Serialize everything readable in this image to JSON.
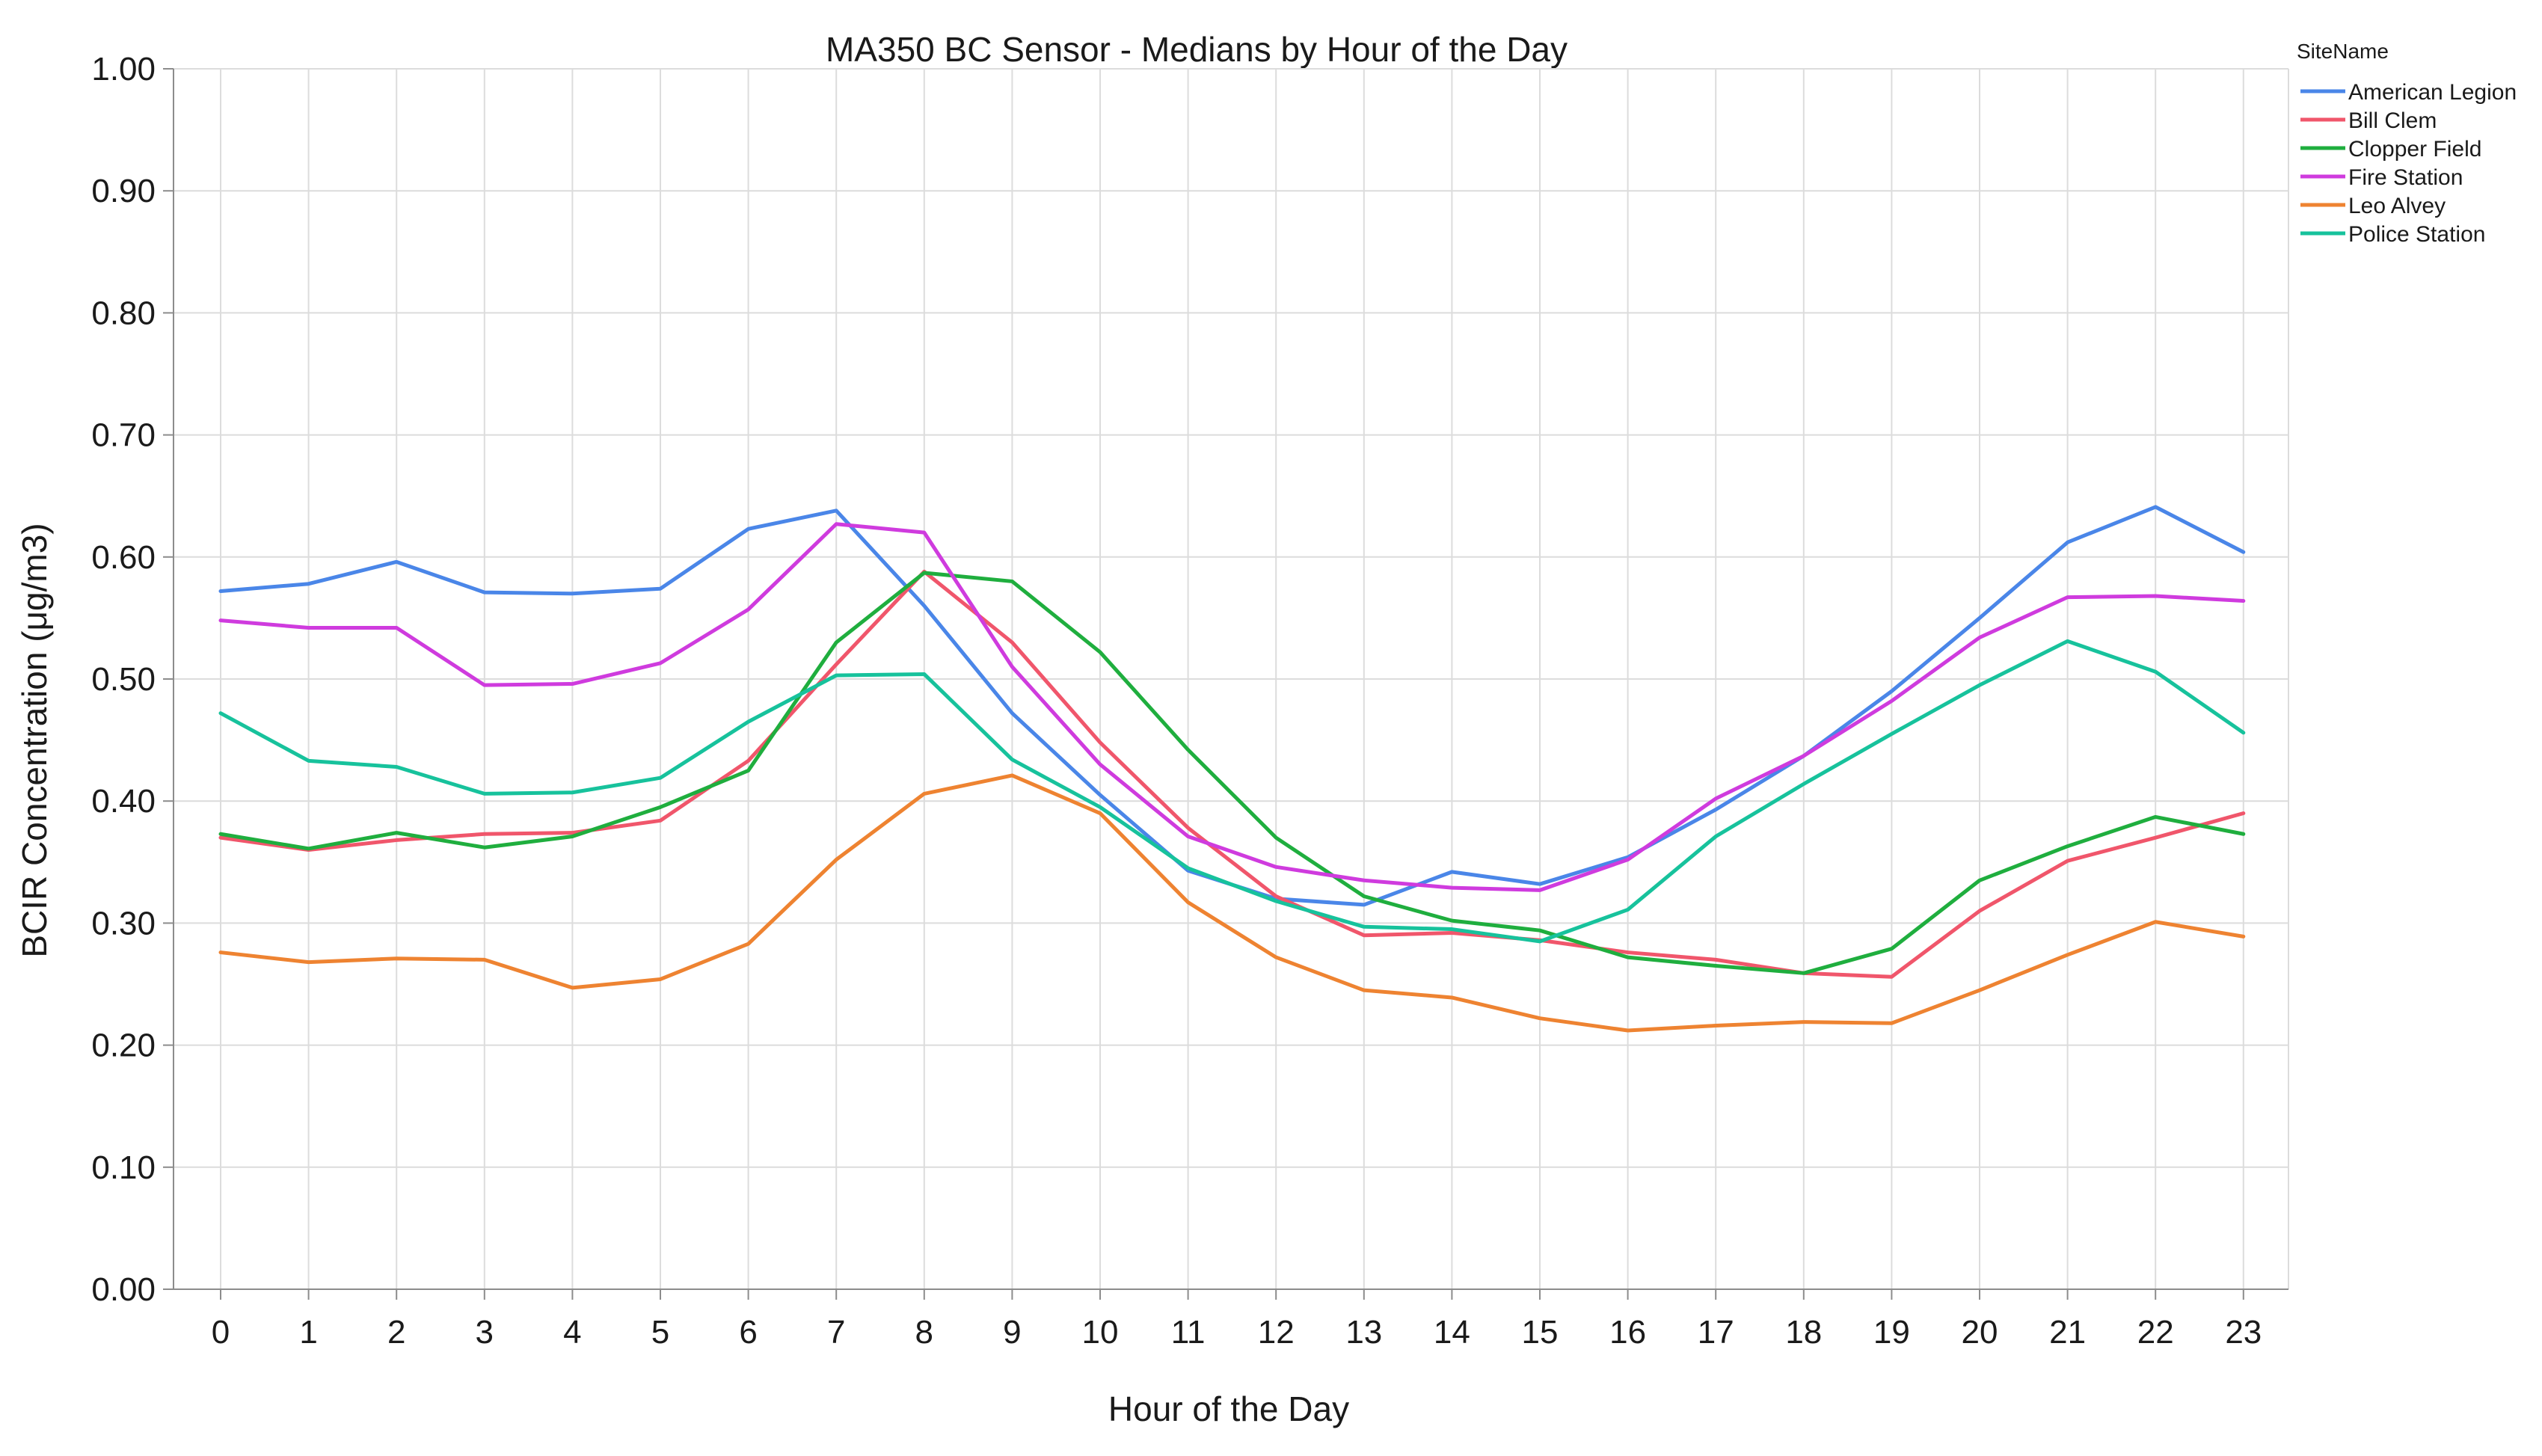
{
  "chart_data": {
    "type": "line",
    "title": "MA350 BC Sensor - Medians by Hour of the Day",
    "xlabel": "Hour of the Day",
    "ylabel": "BCIR Concentration (μg/m3)",
    "x": [
      0,
      1,
      2,
      3,
      4,
      5,
      6,
      7,
      8,
      9,
      10,
      11,
      12,
      13,
      14,
      15,
      16,
      17,
      18,
      19,
      20,
      21,
      22,
      23
    ],
    "x_tick_labels": [
      "0",
      "1",
      "2",
      "3",
      "4",
      "5",
      "6",
      "7",
      "8",
      "9",
      "10",
      "11",
      "12",
      "13",
      "14",
      "15",
      "16",
      "17",
      "18",
      "19",
      "20",
      "21",
      "22",
      "23"
    ],
    "ylim": [
      0,
      1
    ],
    "y_ticks": [
      0,
      0.1,
      0.2,
      0.3,
      0.4,
      0.5,
      0.6,
      0.7,
      0.8,
      0.9,
      1.0
    ],
    "y_tick_labels": [
      "0.00",
      "0.10",
      "0.20",
      "0.30",
      "0.40",
      "0.50",
      "0.60",
      "0.70",
      "0.80",
      "0.90",
      "1.00"
    ],
    "grid": true,
    "legend": {
      "title": "SiteName",
      "placement": "top-right, outside plot"
    },
    "series": [
      {
        "name": "American Legion",
        "color": "#4a86e8",
        "values": [
          0.572,
          0.578,
          0.596,
          0.571,
          0.57,
          0.574,
          0.623,
          0.638,
          0.56,
          0.472,
          0.405,
          0.343,
          0.32,
          0.315,
          0.342,
          0.332,
          0.354,
          0.393,
          0.437,
          0.49,
          0.55,
          0.612,
          0.641,
          0.604
        ]
      },
      {
        "name": "Bill Clem",
        "color": "#f0566b",
        "values": [
          0.37,
          0.36,
          0.368,
          0.373,
          0.374,
          0.384,
          0.433,
          0.512,
          0.588,
          0.53,
          0.448,
          0.378,
          0.322,
          0.29,
          0.292,
          0.286,
          0.276,
          0.27,
          0.259,
          0.256,
          0.31,
          0.351,
          0.37,
          0.39
        ]
      },
      {
        "name": "Clopper Field",
        "color": "#1fae3e",
        "values": [
          0.373,
          0.361,
          0.374,
          0.362,
          0.371,
          0.395,
          0.425,
          0.53,
          0.587,
          0.58,
          0.522,
          0.442,
          0.37,
          0.322,
          0.302,
          0.294,
          0.272,
          0.265,
          0.259,
          0.279,
          0.335,
          0.363,
          0.387,
          0.373
        ]
      },
      {
        "name": "Fire Station",
        "color": "#cf3bde",
        "values": [
          0.548,
          0.542,
          0.542,
          0.495,
          0.496,
          0.513,
          0.557,
          0.627,
          0.62,
          0.51,
          0.43,
          0.371,
          0.346,
          0.335,
          0.329,
          0.327,
          0.352,
          0.402,
          0.437,
          0.482,
          0.534,
          0.567,
          0.568,
          0.564
        ]
      },
      {
        "name": "Leo Alvey",
        "color": "#ee8331",
        "values": [
          0.276,
          0.268,
          0.271,
          0.27,
          0.247,
          0.254,
          0.283,
          0.352,
          0.406,
          0.421,
          0.39,
          0.317,
          0.272,
          0.245,
          0.239,
          0.222,
          0.212,
          0.216,
          0.219,
          0.218,
          0.245,
          0.274,
          0.301,
          0.289
        ]
      },
      {
        "name": "Police Station",
        "color": "#17c29c",
        "values": [
          0.472,
          0.433,
          0.428,
          0.406,
          0.407,
          0.419,
          0.465,
          0.503,
          0.504,
          0.434,
          0.395,
          0.345,
          0.318,
          0.297,
          0.295,
          0.285,
          0.311,
          0.371,
          0.414,
          0.455,
          0.495,
          0.531,
          0.506,
          0.456
        ]
      }
    ]
  }
}
